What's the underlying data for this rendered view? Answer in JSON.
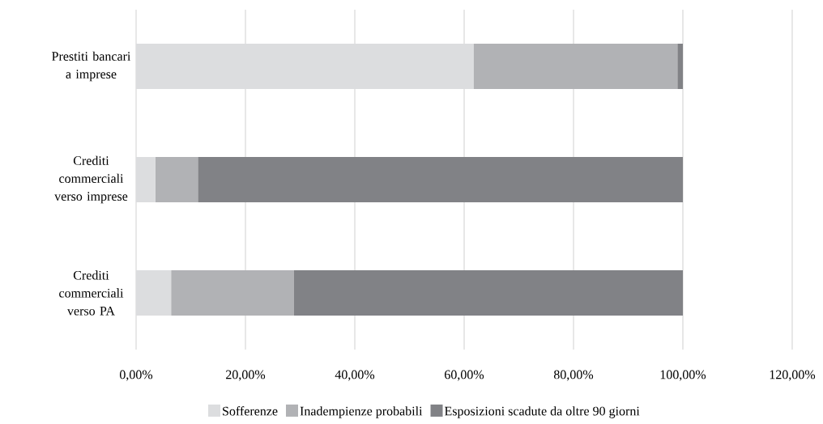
{
  "chart_data": {
    "type": "bar",
    "orientation": "horizontal",
    "stacked": true,
    "categories": [
      "Prestiti bancari a imprese",
      "Crediti commerciali verso imprese",
      "Crediti commerciali verso PA"
    ],
    "series": [
      {
        "name": "Sofferenze",
        "color": "#dcdddf",
        "values": [
          61.7,
          3.5,
          6.4
        ]
      },
      {
        "name": "Inadempienze probabili",
        "color": "#b1b2b5",
        "values": [
          37.3,
          7.8,
          22.4
        ]
      },
      {
        "name": "Esposizioni scadute da oltre 90 giorni",
        "color": "#818286",
        "values": [
          1.0,
          88.7,
          71.2
        ]
      }
    ],
    "xlim": [
      0,
      120
    ],
    "xticks": [
      {
        "value": 0,
        "label": "0,00%"
      },
      {
        "value": 20,
        "label": "20,00%"
      },
      {
        "value": 40,
        "label": "40,00%"
      },
      {
        "value": 60,
        "label": "60,00%"
      },
      {
        "value": 80,
        "label": "80,00%"
      },
      {
        "value": 100,
        "label": "100,00%"
      },
      {
        "value": 120,
        "label": "120,00%"
      }
    ],
    "grid": "x",
    "legend": "bottom"
  }
}
